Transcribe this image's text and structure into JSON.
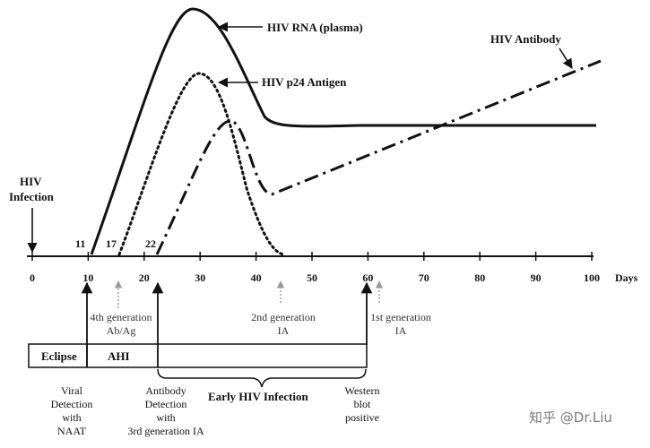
{
  "curves": {
    "rna_label": "HIV RNA (plasma)",
    "p24_label": "HIV p24 Antigen",
    "antibody_label": "HIV Antibody"
  },
  "infection": {
    "line1": "HIV",
    "line2": "Infection"
  },
  "day_markers": [
    "11",
    "17",
    "22"
  ],
  "axis": {
    "ticks": [
      "0",
      "10",
      "20",
      "30",
      "40",
      "50",
      "60",
      "70",
      "80",
      "90",
      "100"
    ],
    "unit": "Days"
  },
  "tests": {
    "gen4": {
      "line1": "4th generation",
      "line2": "Ab/Ag"
    },
    "gen2": {
      "line1": "2nd generation",
      "line2": "IA"
    },
    "gen1": {
      "line1": "1st generation",
      "line2": "IA"
    }
  },
  "phases": {
    "eclipse": "Eclipse",
    "ahi": "AHI",
    "early": "Early HIV Infection"
  },
  "bottom": {
    "viral": [
      "Viral",
      "Detection",
      "with",
      "NAAT"
    ],
    "antibody": [
      "Antibody",
      "Detection",
      "with",
      "3rd generation IA"
    ],
    "western": [
      "Western",
      "blot",
      "positive"
    ]
  },
  "watermark": "知乎 @Dr.Liu",
  "colors": {
    "ink": "#111111",
    "note_arrow": "#9a9a9a"
  }
}
